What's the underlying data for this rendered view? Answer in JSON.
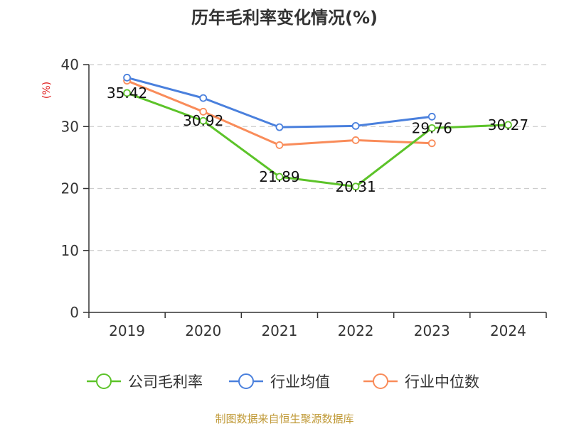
{
  "chart_data": {
    "type": "line",
    "title": "历年毛利率变化情况(%)",
    "ylabel": "(%)",
    "categories": [
      "2019",
      "2020",
      "2021",
      "2022",
      "2023",
      "2024"
    ],
    "y_ticks": [
      "0",
      "10",
      "20",
      "30",
      "40"
    ],
    "ylim": [
      0,
      40
    ],
    "grid": true,
    "legend_position": "bottom",
    "series": [
      {
        "name": "公司毛利率",
        "color": "#5cc329",
        "values": [
          35.42,
          30.92,
          21.89,
          20.31,
          29.76,
          30.27
        ],
        "labels": [
          "35.42",
          "30.92",
          "21.89",
          "20.31",
          "29.76",
          "30.27"
        ]
      },
      {
        "name": "行业均值",
        "color": "#4a80dd",
        "values": [
          37.9,
          34.6,
          29.9,
          30.1,
          31.6,
          null
        ]
      },
      {
        "name": "行业中位数",
        "color": "#f98c5a",
        "values": [
          37.4,
          32.4,
          27.0,
          27.8,
          27.3,
          null
        ]
      }
    ]
  },
  "colors": {
    "ylabel": "#e02020",
    "source": "#c09a38",
    "axis": "#333333",
    "grid": "#cccccc"
  },
  "source": "制图数据来自恒生聚源数据库"
}
